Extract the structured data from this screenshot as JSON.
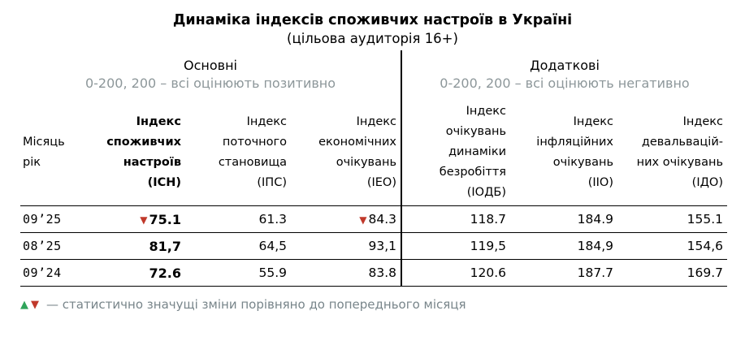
{
  "title": "Динаміка індексів споживчих настроїв в Україні",
  "subtitle": "(цільова аудиторія 16+)",
  "colors": {
    "text": "#000000",
    "muted_scale_text": "#8d979a",
    "footnote_text": "#78858a",
    "up_green": "#2fa45a",
    "down_red": "#c0392b",
    "line": "#000000"
  },
  "icons": {
    "up_triangle": "▲",
    "down_triangle": "▼"
  },
  "groups": {
    "main": {
      "label": "Основні",
      "scale": "0-200, 200 – всі оцінюють позитивно"
    },
    "additional": {
      "label": "Додаткові",
      "scale": "0-200, 200 – всі оцінюють негативно"
    }
  },
  "chart_data": {
    "type": "table",
    "title": "Динаміка індексів споживчих настроїв в Україні",
    "subtitle": "(цільова аудиторія 16+)",
    "column_groups": [
      {
        "label": "Основні",
        "scale": "0-200, 200 – всі оцінюють позитивно",
        "columns": [
          "ІСН",
          "ІПС",
          "ІЕО"
        ]
      },
      {
        "label": "Додаткові",
        "scale": "0-200, 200 – всі оцінюють негативно",
        "columns": [
          "ІОДБ",
          "ІІО",
          "ІДО"
        ]
      }
    ],
    "headers": {
      "month": "Місяць\nрік",
      "icn": "Індекс\nспоживчих\nнастроїв\n(ІСН)",
      "ipc": "Індекс\nпоточного\nстановища\n(ІПС)",
      "ieo": "Індекс\nекономічних\nочікувань\n(ІЕО)",
      "iodb": "Індекс\nочікувань\nдинаміки\nбезробіття\n(ІОДБ)",
      "iio": "Індекс\nінфляційних\nочікувань\n(ІІО)",
      "ido": "Індекс\nдевальвацій-\nних очікувань\n(ІДО)"
    },
    "rows": [
      {
        "month": "09’25",
        "icn": "75.1",
        "icn_change": "down",
        "ipc": "61.3",
        "ieo": "84.3",
        "ieo_change": "down",
        "iodb": "118.7",
        "iio": "184.9",
        "ido": "155.1"
      },
      {
        "month": "08’25",
        "icn": "81,7",
        "ipc": "64,5",
        "ieo": "93,1",
        "iodb": "119,5",
        "iio": "184,9",
        "ido": "154,6"
      },
      {
        "month": "09’24",
        "icn": "72.6",
        "ipc": "55.9",
        "ieo": "83.8",
        "iodb": "120.6",
        "iio": "187.7",
        "ido": "169.7"
      }
    ]
  },
  "footnote": {
    "text": "— статистично значущі зміни порівняно до попереднього місяця"
  }
}
